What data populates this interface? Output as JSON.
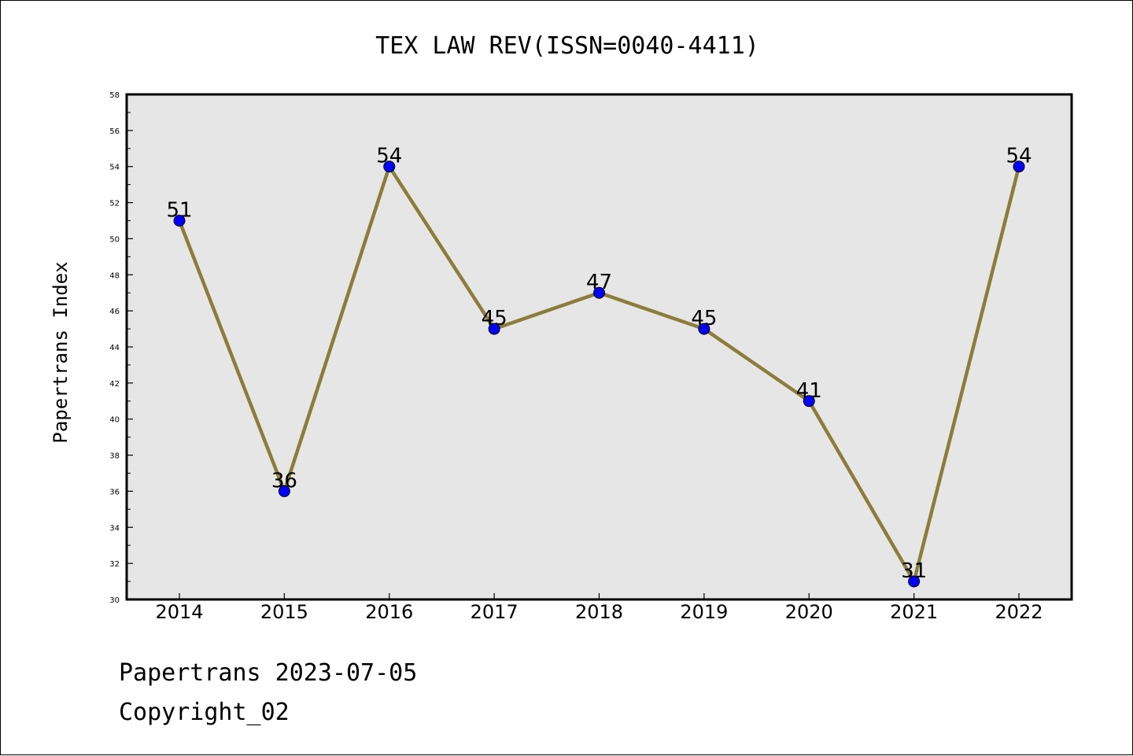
{
  "chart_data": {
    "type": "line",
    "title": "TEX LAW REV(ISSN=0040-4411)",
    "xlabel": "",
    "ylabel": "Papertrans Index",
    "categories": [
      "2014",
      "2015",
      "2016",
      "2017",
      "2018",
      "2019",
      "2020",
      "2021",
      "2022"
    ],
    "series": [
      {
        "values": [
          51,
          36,
          54,
          45,
          47,
          45,
          41,
          31,
          54
        ]
      }
    ],
    "data_labels": [
      "51",
      "36",
      "54",
      "45",
      "47",
      "45",
      "41",
      "31",
      "54"
    ],
    "ylim": [
      30,
      58
    ],
    "yticks": [
      "30",
      "32",
      "34",
      "36",
      "38",
      "40",
      "42",
      "44",
      "46",
      "48",
      "50",
      "52",
      "54",
      "56",
      "58"
    ],
    "grid": false,
    "legend": "none",
    "colors": {
      "line": "#8B7D3A",
      "marker": "#0000FF",
      "plot_background": "#E6E6E6"
    }
  },
  "footer": {
    "line1": "Papertrans 2023-07-05",
    "line2": "Copyright_02"
  }
}
